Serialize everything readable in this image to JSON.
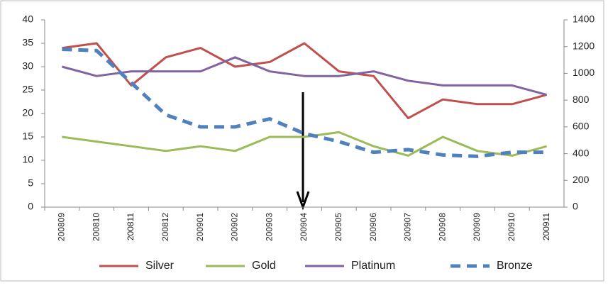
{
  "chart_data": {
    "type": "line",
    "categories": [
      "200809",
      "200810",
      "200811",
      "200812",
      "200901",
      "200902",
      "200903",
      "200904",
      "200905",
      "200906",
      "200907",
      "200908",
      "200909",
      "200910",
      "200911"
    ],
    "series": [
      {
        "name": "Silver",
        "color": "#c0504d",
        "values": [
          34,
          35,
          26,
          32,
          34,
          30,
          31,
          35,
          29,
          28,
          19,
          23,
          22,
          22,
          24
        ]
      },
      {
        "name": "Gold",
        "color": "#9bbb59",
        "values": [
          15,
          14,
          13,
          12,
          13,
          12,
          15,
          15,
          16,
          13,
          11,
          15,
          12,
          11,
          13
        ]
      },
      {
        "name": "Platinum",
        "color": "#8064a2",
        "values": [
          30,
          28,
          29,
          29,
          29,
          32,
          29,
          28,
          28,
          29,
          27,
          26,
          26,
          26,
          24
        ]
      },
      {
        "name": "Bronze",
        "color": "#4f81bd",
        "axis": "y2",
        "dashed": true,
        "values": [
          1180,
          1170,
          930,
          690,
          600,
          600,
          660,
          550,
          490,
          410,
          430,
          390,
          380,
          410,
          410
        ]
      }
    ],
    "ylim": [
      0,
      40
    ],
    "yticks": [
      0,
      5,
      10,
      15,
      20,
      25,
      30,
      35,
      40
    ],
    "y2lim": [
      0,
      1400
    ],
    "y2ticks": [
      0,
      200,
      400,
      600,
      800,
      1000,
      1200,
      1400
    ],
    "grid": false,
    "legend": "bottom"
  }
}
